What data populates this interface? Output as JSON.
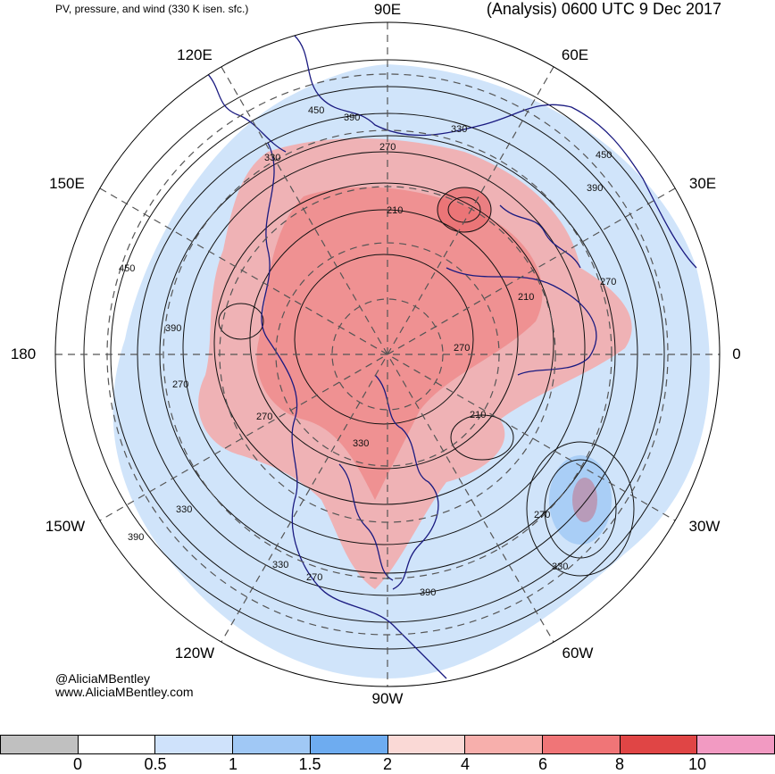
{
  "header": {
    "left_title": "PV, pressure, and wind (330 K isen. sfc.)",
    "right_title": "(Analysis) 0600 UTC 9 Dec 2017"
  },
  "longitude_labels": {
    "lon_90e": "90E",
    "lon_60e": "60E",
    "lon_120e": "120E",
    "lon_150e": "150E",
    "lon_30e": "30E",
    "lon_180": "180",
    "lon_0": "0",
    "lon_150w": "150W",
    "lon_30w": "30W",
    "lon_120w": "120W",
    "lon_60w": "60W",
    "lon_90w": "90W"
  },
  "contour_labels": {
    "c1": "450",
    "c2": "390",
    "c3": "330",
    "c4": "270",
    "c5": "330",
    "c6": "210",
    "c7": "450",
    "c8": "390",
    "c9": "270",
    "c10": "450",
    "c11": "390",
    "c12": "270",
    "c13": "270",
    "c14": "210",
    "c15": "210",
    "c16": "270",
    "c17": "330",
    "c18": "390",
    "c19": "330",
    "c20": "270",
    "c21": "390",
    "c22": "330",
    "c23": "270",
    "c24": "330"
  },
  "credits": {
    "handle": "@AliciaMBentley",
    "website": "www.AliciaMBentley.com"
  },
  "colorbar": {
    "colors": [
      "#c0c0c0",
      "#ffffff",
      "#cfe2fb",
      "#a0c8f5",
      "#6eacf0",
      "#fad9d6",
      "#f7afac",
      "#f07577",
      "#e04545",
      "#f29ac2"
    ],
    "ticks": [
      "0",
      "0.5",
      "1",
      "1.5",
      "2",
      "4",
      "6",
      "8",
      "10"
    ]
  }
}
